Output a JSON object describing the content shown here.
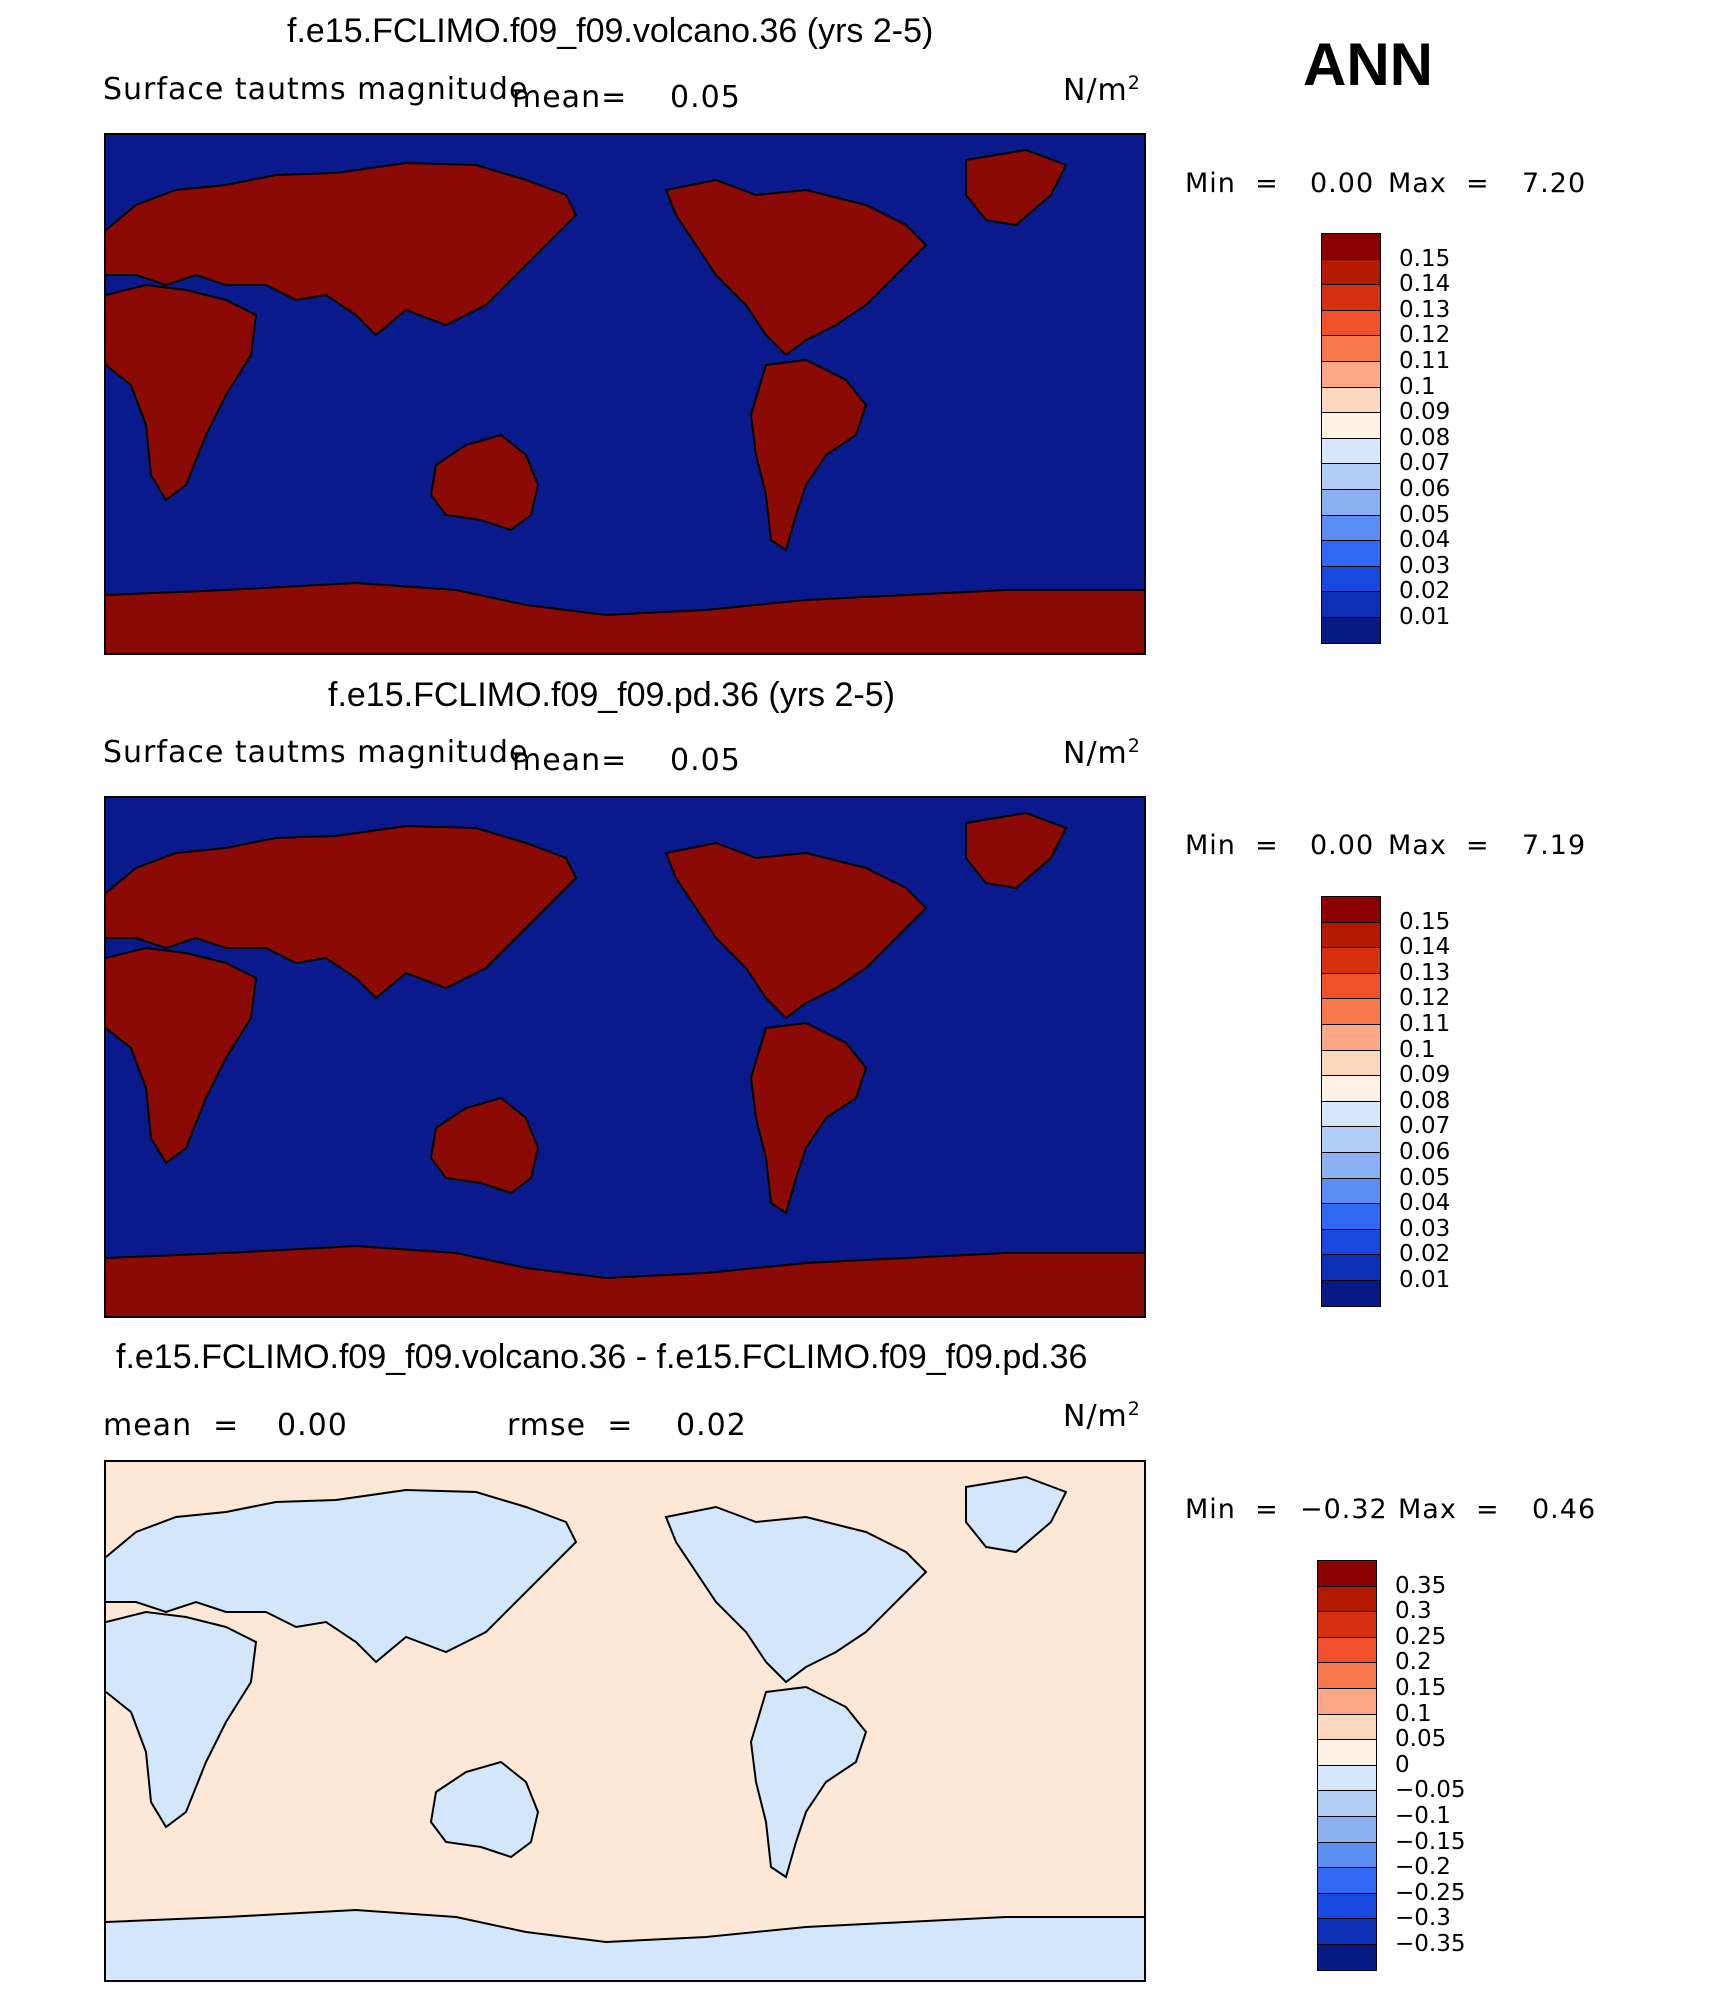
{
  "season_label": "ANN",
  "panels": [
    {
      "id": "volcano",
      "title": "f.e15.FCLIMO.f09_f09.volcano.36 (yrs 2-5)",
      "variable": "Surface tautms magnitude",
      "mean_label": "mean=",
      "mean_value": "0.05",
      "units_base": "N/m",
      "units_exp": "2",
      "min_label": "Min  =",
      "min_value": "0.00",
      "max_label": "Max  =",
      "max_value": "7.20",
      "ocean_color": "#0a1a8c",
      "land_color": "#8b0a05",
      "colorbar": {
        "levels": [
          "0.15",
          "0.14",
          "0.13",
          "0.12",
          "0.11",
          "0.1",
          "0.09",
          "0.08",
          "0.07",
          "0.06",
          "0.05",
          "0.04",
          "0.03",
          "0.02",
          "0.01"
        ],
        "colors": [
          "#8b0000",
          "#b31a00",
          "#d63010",
          "#f0502a",
          "#f8784e",
          "#fca886",
          "#fdd7bd",
          "#fff2e4",
          "#d6e6fb",
          "#b2cdf6",
          "#8ab0f3",
          "#5b8ef2",
          "#2f68f2",
          "#1848e0",
          "#0c2fb8",
          "#071985"
        ]
      }
    },
    {
      "id": "pd",
      "title": "f.e15.FCLIMO.f09_f09.pd.36 (yrs 2-5)",
      "variable": "Surface tautms magnitude",
      "mean_label": "mean=",
      "mean_value": "0.05",
      "units_base": "N/m",
      "units_exp": "2",
      "min_label": "Min  =",
      "min_value": "0.00",
      "max_label": "Max  =",
      "max_value": "7.19",
      "ocean_color": "#0a1a8c",
      "land_color": "#8b0a05",
      "colorbar": {
        "levels": [
          "0.15",
          "0.14",
          "0.13",
          "0.12",
          "0.11",
          "0.1",
          "0.09",
          "0.08",
          "0.07",
          "0.06",
          "0.05",
          "0.04",
          "0.03",
          "0.02",
          "0.01"
        ],
        "colors": [
          "#8b0000",
          "#b31a00",
          "#d63010",
          "#f0502a",
          "#f8784e",
          "#fca886",
          "#fdd7bd",
          "#fff2e4",
          "#d6e6fb",
          "#b2cdf6",
          "#8ab0f3",
          "#5b8ef2",
          "#2f68f2",
          "#1848e0",
          "#0c2fb8",
          "#071985"
        ]
      }
    },
    {
      "id": "diff",
      "title": "f.e15.FCLIMO.f09_f09.volcano.36 - f.e15.FCLIMO.f09_f09.pd.36",
      "mean_label": "mean  =",
      "mean_value": "0.00",
      "rmse_label": "rmse  =",
      "rmse_value": "0.02",
      "units_base": "N/m",
      "units_exp": "2",
      "min_label": "Min  =",
      "min_value": "−0.32",
      "max_label": "Max  =",
      "max_value": "0.46",
      "ocean_color": "#fde8d8",
      "land_color": "#d4e6fb",
      "colorbar": {
        "levels": [
          "0.35",
          "0.3",
          "0.25",
          "0.2",
          "0.15",
          "0.1",
          "0.05",
          "0",
          "−0.05",
          "−0.1",
          "−0.15",
          "−0.2",
          "−0.25",
          "−0.3",
          "−0.35"
        ],
        "colors": [
          "#8b0000",
          "#b31a00",
          "#d63010",
          "#f0502a",
          "#f8784e",
          "#fca886",
          "#fdd7bd",
          "#fff2e4",
          "#d6e6fb",
          "#b2cdf6",
          "#8ab0f3",
          "#5b8ef2",
          "#2f68f2",
          "#1848e0",
          "#0c2fb8",
          "#071985"
        ]
      }
    }
  ]
}
